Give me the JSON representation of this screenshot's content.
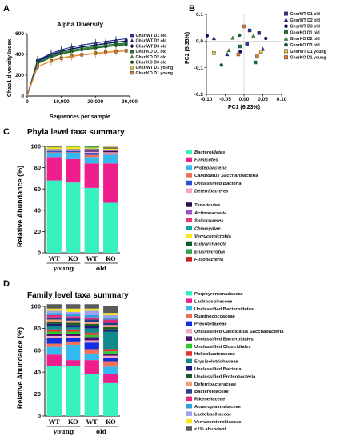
{
  "panels": {
    "a": {
      "label": "A",
      "title": "Alpha Diversity"
    },
    "b": {
      "label": "B"
    },
    "c": {
      "label": "C",
      "title": "Phyla level taxa summary"
    },
    "d": {
      "label": "D",
      "title": "Family level taxa summary"
    }
  },
  "colors": {
    "GhsrWT_D1_old": "#2b2f9a",
    "GhsrWT_D2_old": "#1b2a8f",
    "GhsrWT_D3_old": "#0b1260",
    "GhsrKO_D1_old": "#1e7a3c",
    "GhsrKO_D2_old": "#3c8a2e",
    "GhsrKO_D3_old": "#0f5c2a",
    "GhsrWT_D1_young": "#e8c440",
    "GhsrKO_D1_young": "#e8803a"
  },
  "chart_data": [
    {
      "type": "line",
      "panel": "A",
      "title": "Alpha Diversity",
      "xlabel": "Sequences per sample",
      "ylabel": "Chao1 diversity Index",
      "xlim": [
        0,
        30000
      ],
      "ylim": [
        0,
        600
      ],
      "x_ticks": [
        "0",
        "10,000",
        "20,000",
        "30,000"
      ],
      "y_ticks": [
        "0",
        "200",
        "400",
        "600"
      ],
      "x": [
        0,
        3000,
        7000,
        10000,
        13000,
        16000,
        20000,
        23000,
        26000,
        29000
      ],
      "series": [
        {
          "name": "Ghsr WT D1 old",
          "marker": "square",
          "color": "#2b2f9a",
          "values": [
            0,
            340,
            400,
            432,
            455,
            472,
            492,
            505,
            518,
            530
          ]
        },
        {
          "name": "Ghsr WT D2 old",
          "marker": "triangle",
          "color": "#1b2a8f",
          "values": [
            0,
            345,
            410,
            445,
            470,
            490,
            510,
            525,
            538,
            550
          ]
        },
        {
          "name": "Ghsr WT D3 old",
          "marker": "diamond",
          "color": "#0b1260",
          "values": [
            0,
            330,
            395,
            428,
            452,
            470,
            490,
            502,
            515,
            526
          ]
        },
        {
          "name": "Ghsr KO D1 old",
          "marker": "square",
          "color": "#1e7a3c",
          "values": [
            0,
            320,
            385,
            418,
            440,
            458,
            476,
            488,
            500,
            510
          ]
        },
        {
          "name": "Ghsr KO D2 old",
          "marker": "triangle",
          "color": "#3c8a2e",
          "values": [
            0,
            315,
            378,
            410,
            432,
            450,
            468,
            480,
            492,
            502
          ]
        },
        {
          "name": "Ghsr KO D3 old",
          "marker": "circle",
          "color": "#0f5c2a",
          "values": [
            0,
            310,
            372,
            403,
            425,
            442,
            460,
            472,
            484,
            494
          ]
        },
        {
          "name": "Ghsr/WT D1 young",
          "marker": "square",
          "color": "#e8c440",
          "values": [
            0,
            285,
            340,
            368,
            386,
            400,
            415,
            425,
            433,
            440
          ]
        },
        {
          "name": "Ghsr/KO D1 young",
          "marker": "square",
          "color": "#e8803a",
          "values": [
            0,
            280,
            335,
            362,
            380,
            394,
            408,
            418,
            426,
            432
          ]
        }
      ]
    },
    {
      "type": "scatter",
      "panel": "B",
      "xlabel": "PC1 (6.23%)",
      "ylabel": "PC2 (5.35%)",
      "xlim": [
        -0.1,
        0.1
      ],
      "ylim": [
        -0.2,
        0.1
      ],
      "x_ticks": [
        "-0.10",
        "-0.05",
        "0.00",
        "0.05",
        "0.10"
      ],
      "y_ticks": [
        "-0.2",
        "-0.1",
        "0.0",
        "0.1"
      ],
      "legend": [
        {
          "name": "GhsrWT D1 old",
          "marker": "square",
          "color": "#2b2f9a"
        },
        {
          "name": "GhsrWT D2 old",
          "marker": "triangle",
          "color": "#1b2a8f"
        },
        {
          "name": "GhsrWT D3 old",
          "marker": "circle",
          "color": "#0b1260"
        },
        {
          "name": "GhsrKO D1 old",
          "marker": "square",
          "color": "#1e7a3c"
        },
        {
          "name": "GhsrKO D2 old",
          "marker": "triangle",
          "color": "#3c8a2e"
        },
        {
          "name": "GhsrKO D3 old",
          "marker": "circle",
          "color": "#0f5c2a"
        },
        {
          "name": "GhsrWT D1 young",
          "marker": "square",
          "color": "#e8c440"
        },
        {
          "name": "GhsrKO D1 young",
          "marker": "square",
          "color": "#e8803a"
        }
      ],
      "points": [
        {
          "group": "GhsrWT D1 old",
          "x": 0.008,
          "y": -0.01
        },
        {
          "group": "GhsrWT D1 old",
          "x": 0.015,
          "y": 0.04
        },
        {
          "group": "GhsrWT D1 old",
          "x": 0.04,
          "y": 0.03
        },
        {
          "group": "GhsrWT D2 old",
          "x": -0.08,
          "y": 0.01
        },
        {
          "group": "GhsrWT D2 old",
          "x": -0.045,
          "y": -0.05
        },
        {
          "group": "GhsrWT D2 old",
          "x": 0.05,
          "y": -0.03
        },
        {
          "group": "GhsrWT D3 old",
          "x": -0.098,
          "y": 0.02
        },
        {
          "group": "GhsrWT D3 old",
          "x": -0.01,
          "y": -0.04
        },
        {
          "group": "GhsrWT D3 old",
          "x": 0.058,
          "y": 0.01
        },
        {
          "group": "GhsrKO D1 old",
          "x": -0.01,
          "y": -0.02
        },
        {
          "group": "GhsrKO D1 old",
          "x": 0.03,
          "y": -0.08
        },
        {
          "group": "GhsrKO D2 old",
          "x": -0.04,
          "y": -0.035
        },
        {
          "group": "GhsrKO D2 old",
          "x": 0.025,
          "y": 0.02
        },
        {
          "group": "GhsrKO D2 old",
          "x": -0.03,
          "y": 0.012
        },
        {
          "group": "GhsrKO D3 old",
          "x": -0.06,
          "y": -0.09
        },
        {
          "group": "GhsrKO D3 old",
          "x": -0.012,
          "y": 0.022
        },
        {
          "group": "GhsrWT D1 young",
          "x": -0.08,
          "y": -0.045
        },
        {
          "group": "GhsrWT D1 young",
          "x": 0.045,
          "y": -0.04
        },
        {
          "group": "GhsrKO D1 young",
          "x": 0.0,
          "y": 0.055
        },
        {
          "group": "GhsrKO D1 young",
          "x": -0.015,
          "y": -0.05
        },
        {
          "group": "GhsrKO D1 young",
          "x": 0.035,
          "y": -0.055
        }
      ]
    },
    {
      "type": "bar",
      "stacked": true,
      "panel": "C",
      "title": "Phyla level taxa summary",
      "ylabel": "Relative  Abundance (%)",
      "ylim": [
        0,
        100
      ],
      "y_ticks": [
        "0",
        "20",
        "40",
        "60",
        "80",
        "100"
      ],
      "categories": [
        "WT",
        "KO",
        "WT",
        "KO"
      ],
      "groups": [
        {
          "label": "young",
          "span": [
            0,
            1
          ]
        },
        {
          "label": "old",
          "span": [
            2,
            3
          ]
        }
      ],
      "series": [
        {
          "name": "Bacteroidetes",
          "color": "#36f0c0",
          "values": [
            68,
            66,
            61,
            47
          ]
        },
        {
          "name": "Firmicutes",
          "color": "#f01e8c",
          "values": [
            22,
            22,
            23,
            37
          ]
        },
        {
          "name": "Proteobacteria",
          "color": "#35b7f0",
          "values": [
            4,
            6,
            6,
            8
          ]
        },
        {
          "name": "Candidatus Saccharibacteria",
          "color": "#f06e5a",
          "values": [
            0.5,
            0.5,
            2,
            0.5
          ]
        },
        {
          "name": "Unclassified Bacteria",
          "color": "#2b4fd6",
          "values": [
            1,
            1,
            2,
            1
          ]
        },
        {
          "name": "Deferribacteres",
          "color": "#f5a6c2",
          "values": [
            0.5,
            0.5,
            1,
            1
          ]
        },
        {
          "name": "Tenericutes",
          "color": "#2a1250",
          "values": [
            0.5,
            0.5,
            1,
            1
          ]
        },
        {
          "name": "Actinobacteria",
          "color": "#a04fd0",
          "values": [
            0.5,
            0.5,
            1,
            0.5
          ]
        },
        {
          "name": "Spirochaetes",
          "color": "#e53b7e",
          "values": [
            0.3,
            0.3,
            0.5,
            0.5
          ]
        },
        {
          "name": "Chlamydiae",
          "color": "#0fa8a0",
          "values": [
            0.3,
            0.3,
            0.5,
            0.5
          ]
        },
        {
          "name": "Verrucomicrobia",
          "color": "#f5e81e",
          "values": [
            1.5,
            2,
            1,
            1
          ]
        },
        {
          "name": "Euryarchaeota",
          "color": "#0f5a2a",
          "values": [
            0.3,
            0.3,
            0.5,
            0.5
          ]
        },
        {
          "name": "Elusimicrobia",
          "color": "#2ea84a",
          "values": [
            0.3,
            0.2,
            0.5,
            0.5
          ]
        },
        {
          "name": "Fusobacteria",
          "color": "#c81e1e",
          "values": [
            0.3,
            0.2,
            0.5,
            0.5
          ]
        }
      ]
    },
    {
      "type": "bar",
      "stacked": true,
      "panel": "D",
      "title": "Family level taxa summary",
      "ylabel": "Relative  Abundance (%)",
      "ylim": [
        0,
        100
      ],
      "y_ticks": [
        "0",
        "20",
        "40",
        "60",
        "80",
        "100"
      ],
      "categories": [
        "WT",
        "KO",
        "WT",
        "KO"
      ],
      "groups": [
        {
          "label": "young",
          "span": [
            0,
            1
          ]
        },
        {
          "label": "old",
          "span": [
            2,
            3
          ]
        }
      ],
      "series": [
        {
          "name": "Porphyromonadaceae",
          "color": "#36f0c0",
          "values": [
            46,
            46,
            38,
            30
          ]
        },
        {
          "name": "Lachnospiraceae",
          "color": "#f01e8c",
          "values": [
            10,
            5,
            13,
            8
          ]
        },
        {
          "name": "Unclassified Bacteroidetes",
          "color": "#35b7f0",
          "values": [
            7,
            14,
            6,
            7
          ]
        },
        {
          "name": "Ruminococcaceae",
          "color": "#f06e5a",
          "values": [
            3,
            3,
            4,
            5
          ]
        },
        {
          "name": "Prevotellaceae",
          "color": "#1030e0",
          "values": [
            5,
            3,
            6,
            3
          ]
        },
        {
          "name": "Unclassified Candidatus Sacchabacteria",
          "color": "#f5a6c2",
          "values": [
            2,
            2,
            2,
            2
          ]
        },
        {
          "name": "Unclassified Bacteroidales",
          "color": "#4a1070",
          "values": [
            2,
            2,
            3,
            2
          ]
        },
        {
          "name": "Unclassified Clostridiales",
          "color": "#2ec82e",
          "values": [
            2,
            2,
            2,
            2
          ]
        },
        {
          "name": "Helicobacteraceae",
          "color": "#e83030",
          "values": [
            2,
            2,
            2,
            2
          ]
        },
        {
          "name": "Erysipelotrichaceae",
          "color": "#0f8a8a",
          "values": [
            3,
            2,
            4,
            16
          ]
        },
        {
          "name": "Unclassified Bacteria",
          "color": "#1a1a80",
          "values": [
            2,
            2,
            2,
            2
          ]
        },
        {
          "name": "Unclassified Proteobacteria",
          "color": "#1e5a28",
          "values": [
            2,
            2,
            2,
            2
          ]
        },
        {
          "name": "Deferribacteraceae",
          "color": "#f09e7a",
          "values": [
            2,
            2,
            2,
            2
          ]
        },
        {
          "name": "Bacteroidaceae",
          "color": "#283c8c",
          "values": [
            2,
            2,
            2,
            2
          ]
        },
        {
          "name": "Rikenellaceae",
          "color": "#e8287a",
          "values": [
            2,
            2,
            2,
            3
          ]
        },
        {
          "name": "Anaeroplasmataceae",
          "color": "#2aa0e0",
          "values": [
            2,
            2,
            2,
            2
          ]
        },
        {
          "name": "Lactobacillaceae",
          "color": "#a0a0f0",
          "values": [
            2,
            2,
            4,
            2
          ]
        },
        {
          "name": "Verrucomicrobiaceae",
          "color": "#f5e81e",
          "values": [
            2,
            3,
            2,
            2
          ]
        },
        {
          "name": "<1% abundant",
          "color": "#5a5a5a",
          "values": [
            4,
            4,
            4,
            6
          ]
        }
      ]
    }
  ]
}
